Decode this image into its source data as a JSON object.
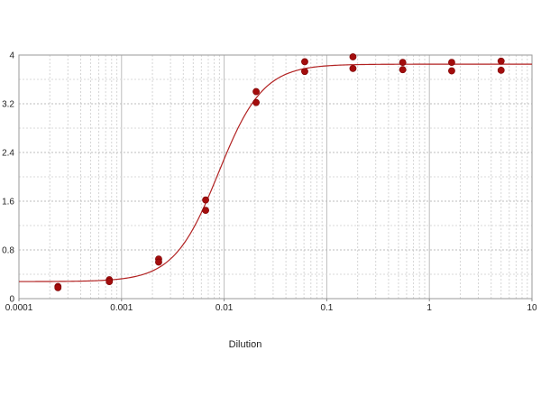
{
  "chart_data": {
    "type": "scatter",
    "title": "",
    "xlabel": "Dilution",
    "ylabel": "",
    "x_scale": "log",
    "xlim": [
      0.0001,
      10
    ],
    "ylim": [
      0,
      4
    ],
    "x_ticks": [
      0.0001,
      0.001,
      0.01,
      0.1,
      1,
      10
    ],
    "x_tick_labels": [
      "0.0001",
      "0.001",
      "0.01",
      "0.1",
      "1",
      "10"
    ],
    "y_ticks": [
      0,
      0.8,
      1.6,
      2.4,
      3.2,
      4
    ],
    "y_tick_labels": [
      "0",
      "0.8",
      "1.6",
      "2.4",
      "3.2",
      "4"
    ],
    "grid": true,
    "legend": "none",
    "series": [
      {
        "kind": "points",
        "color": "#a30d0d",
        "points": [
          [
            0.00024,
            0.2
          ],
          [
            0.00024,
            0.18
          ],
          [
            0.00076,
            0.31
          ],
          [
            0.00076,
            0.28
          ],
          [
            0.0023,
            0.65
          ],
          [
            0.0023,
            0.6
          ],
          [
            0.0066,
            1.62
          ],
          [
            0.0066,
            1.45
          ],
          [
            0.0205,
            3.4
          ],
          [
            0.0205,
            3.22
          ],
          [
            0.061,
            3.89
          ],
          [
            0.061,
            3.73
          ],
          [
            0.18,
            3.97
          ],
          [
            0.18,
            3.78
          ],
          [
            0.55,
            3.88
          ],
          [
            0.55,
            3.76
          ],
          [
            1.65,
            3.88
          ],
          [
            1.65,
            3.74
          ],
          [
            5.0,
            3.9
          ],
          [
            5.0,
            3.75
          ]
        ]
      },
      {
        "kind": "fit-curve",
        "color": "#b22222",
        "model": "4PL",
        "bottom": 0.28,
        "top": 3.85,
        "ec50": 0.0088,
        "hill": 2.0
      }
    ]
  }
}
